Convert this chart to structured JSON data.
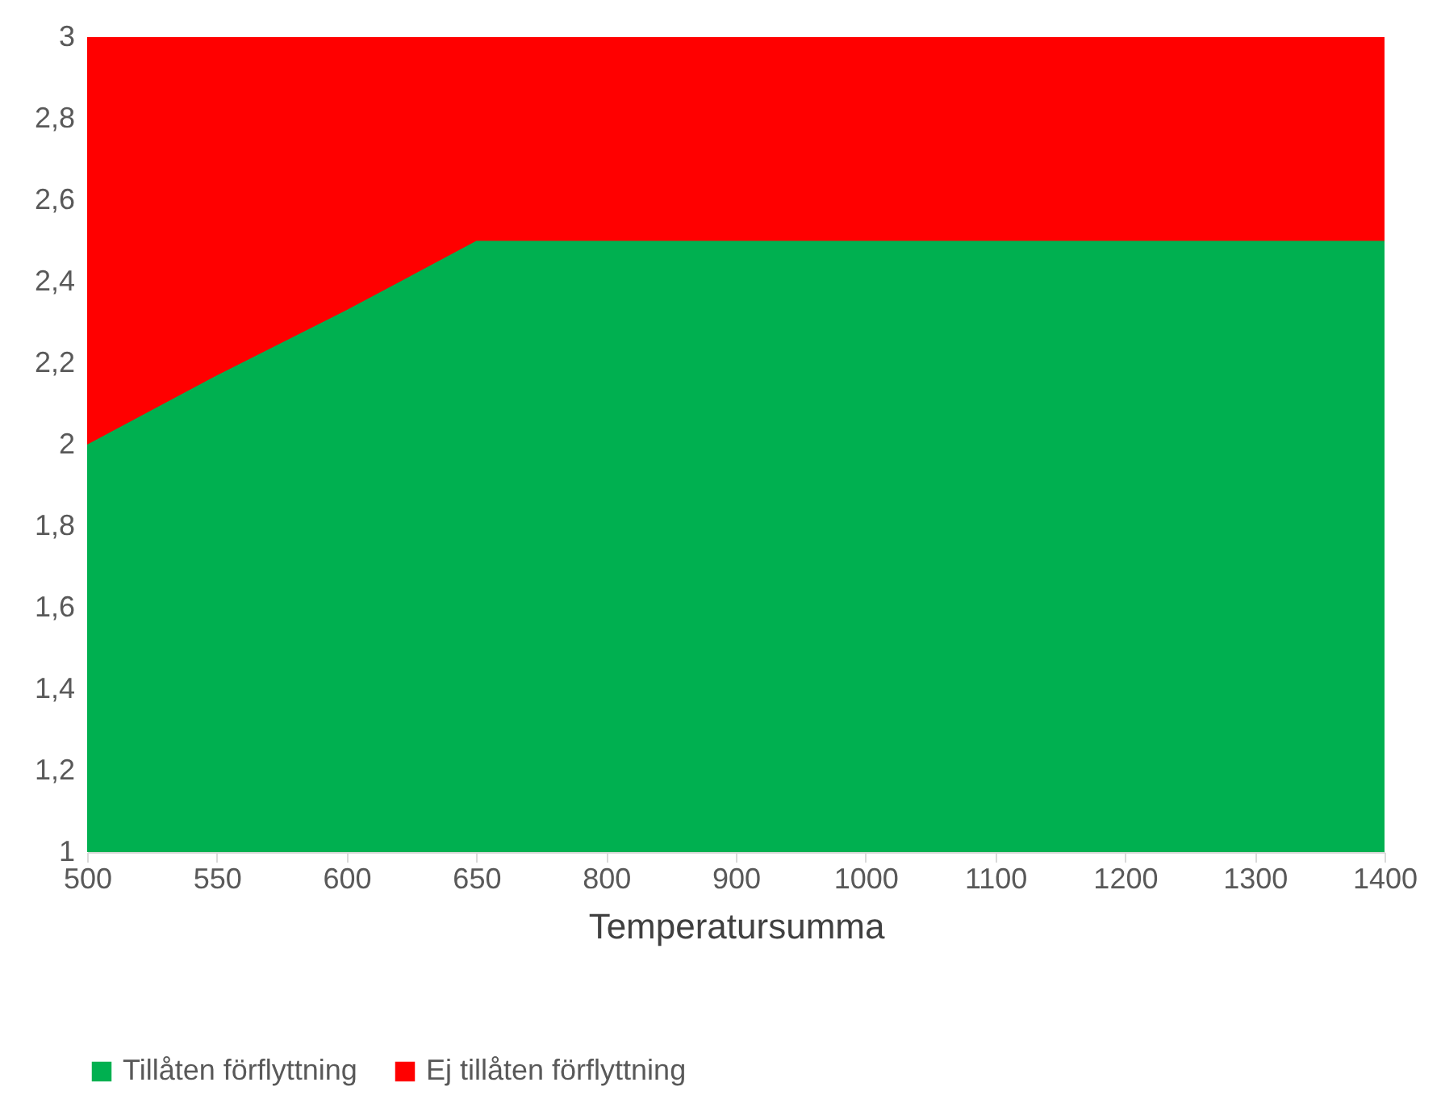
{
  "chart_data": {
    "type": "area",
    "xlabel": "Temperatursumma",
    "categories": [
      "500",
      "550",
      "600",
      "650",
      "800",
      "900",
      "1000",
      "1100",
      "1200",
      "1300",
      "1400"
    ],
    "series": [
      {
        "name": "Tillåten förflyttning",
        "color": "#00b050",
        "values": [
          2,
          2.17,
          2.33,
          2.5,
          2.5,
          2.5,
          2.5,
          2.5,
          2.5,
          2.5,
          2.5
        ]
      },
      {
        "name": "Ej tillåten förflyttning",
        "color": "#ff0000",
        "values": [
          3,
          3,
          3,
          3,
          3,
          3,
          3,
          3,
          3,
          3,
          3
        ]
      }
    ],
    "ylim": [
      1,
      3
    ],
    "yticks": [
      1,
      {
        "value": 1.2,
        "label": "1,2"
      },
      {
        "value": 1.4,
        "label": "1,4"
      },
      {
        "value": 1.6,
        "label": "1,6"
      },
      {
        "value": 1.8,
        "label": "1,8"
      },
      2,
      {
        "value": 2.2,
        "label": "2,2"
      },
      {
        "value": 2.4,
        "label": "2,4"
      },
      {
        "value": 2.6,
        "label": "2,6"
      },
      {
        "value": 2.8,
        "label": "2,8"
      },
      3
    ],
    "grid": false,
    "legend": "bottom"
  }
}
